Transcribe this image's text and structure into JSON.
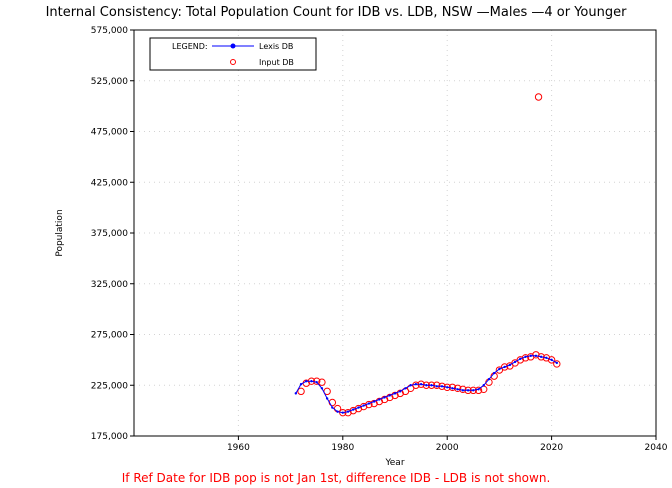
{
  "chart_data": {
    "type": "line",
    "title": "Internal Consistency: Total Population Count for IDB vs. LDB, NSW —Males —4 or Younger",
    "xlabel": "Year",
    "ylabel": "Population",
    "xlim": [
      1940,
      2040
    ],
    "ylim": [
      175000,
      575000
    ],
    "x_ticks": [
      1960,
      1980,
      2000,
      2020,
      2040
    ],
    "x_tick_labels": [
      "1960",
      "1980",
      "2000",
      "2020",
      "2040"
    ],
    "y_ticks": [
      175000,
      225000,
      275000,
      325000,
      375000,
      425000,
      475000,
      525000,
      575000
    ],
    "y_tick_labels": [
      "175,000",
      "225,000",
      "275,000",
      "325,000",
      "375,000",
      "425,000",
      "475,000",
      "525,000",
      "575,000"
    ],
    "grid": true,
    "legend_title": "LEGEND:",
    "legend_position": "top-left",
    "series": [
      {
        "name": "Lexis DB",
        "color": "#0000ff",
        "x": [
          1971,
          1972,
          1973,
          1974,
          1975,
          1976,
          1977,
          1978,
          1979,
          1980,
          1981,
          1982,
          1983,
          1984,
          1985,
          1986,
          1987,
          1988,
          1989,
          1990,
          1991,
          1992,
          1993,
          1994,
          1995,
          1996,
          1997,
          1998,
          1999,
          2000,
          2001,
          2002,
          2003,
          2004,
          2005,
          2006,
          2007,
          2008,
          2009,
          2010,
          2011,
          2012,
          2013,
          2014,
          2015,
          2016,
          2017,
          2018,
          2019,
          2020,
          2021
        ],
        "y": [
          217000,
          226000,
          229000,
          229000,
          228000,
          222000,
          212000,
          203000,
          199000,
          198000,
          199000,
          201000,
          203000,
          205000,
          207000,
          209000,
          211000,
          213000,
          215000,
          217000,
          219000,
          222000,
          225000,
          226000,
          226000,
          225000,
          225000,
          224000,
          224000,
          223000,
          222000,
          221000,
          220000,
          220000,
          220000,
          221000,
          225000,
          231000,
          237000,
          241000,
          243000,
          245000,
          248000,
          251000,
          253000,
          254000,
          254000,
          253000,
          252000,
          250000,
          247000
        ]
      },
      {
        "name": "Input DB",
        "color": "#ff0000",
        "x": [
          1972,
          1973,
          1974,
          1975,
          1976,
          1977,
          1978,
          1979,
          1980,
          1981,
          1982,
          1983,
          1984,
          1985,
          1986,
          1987,
          1988,
          1989,
          1990,
          1991,
          1992,
          1993,
          1994,
          1995,
          1996,
          1997,
          1998,
          1999,
          2000,
          2001,
          2002,
          2003,
          2004,
          2005,
          2006,
          2007,
          2008,
          2009,
          2010,
          2011,
          2012,
          2013,
          2014,
          2015,
          2016,
          2017,
          2017.5,
          2018,
          2019,
          2020,
          2021
        ],
        "y": [
          219000,
          227000,
          229000,
          229000,
          228000,
          219000,
          208000,
          202000,
          198000,
          198000,
          200000,
          202000,
          204000,
          206000,
          207000,
          209000,
          211000,
          213000,
          215000,
          217000,
          219000,
          222000,
          225000,
          226000,
          225000,
          225000,
          225000,
          224000,
          223000,
          223000,
          222000,
          221000,
          220000,
          220000,
          220000,
          221000,
          228000,
          234000,
          240000,
          243000,
          244000,
          247000,
          250000,
          252000,
          253000,
          255000,
          509000,
          253000,
          252000,
          250000,
          246000
        ]
      }
    ]
  },
  "footnote": "If Ref Date for IDB pop is not Jan 1st, difference IDB - LDB is not shown.",
  "colors": {
    "footnote": "#ff0000",
    "frame": "#000000",
    "grid": "#d3d3d3"
  }
}
